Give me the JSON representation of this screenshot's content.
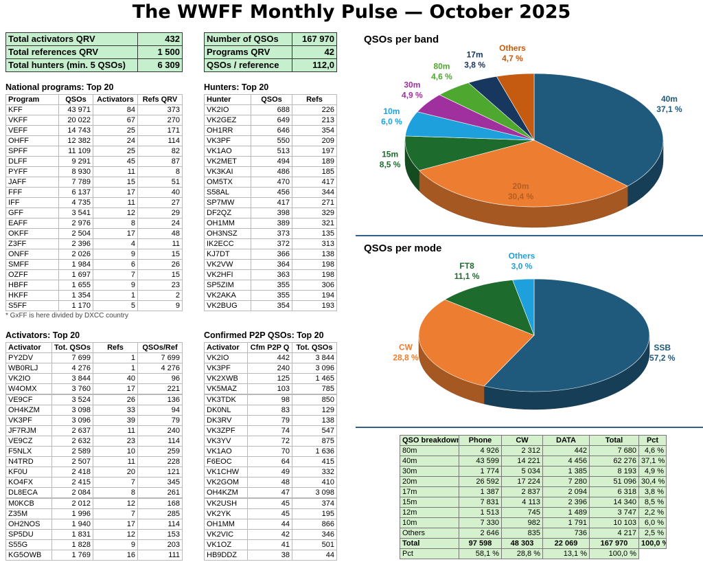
{
  "title": "The WWFF Monthly Pulse — October 2025",
  "summary_left": {
    "rows": [
      [
        "Total activators QRV",
        "432"
      ],
      [
        "Total references QRV",
        "1 500"
      ],
      [
        "Total hunters (min. 5 QSOs)",
        "6 309"
      ]
    ]
  },
  "summary_right": {
    "rows": [
      [
        "Number of QSOs",
        "167 970"
      ],
      [
        "Programs QRV",
        "42"
      ],
      [
        "QSOs / reference",
        "112,0"
      ]
    ]
  },
  "national": {
    "title": "National programs: Top 20",
    "header": [
      "Program",
      "QSOs",
      "Activators",
      "Refs QRV"
    ],
    "rows": [
      [
        "KFF",
        "43 971",
        "84",
        "373"
      ],
      [
        "VKFF",
        "20 022",
        "67",
        "270"
      ],
      [
        "VEFF",
        "14 743",
        "25",
        "171"
      ],
      [
        "OHFF",
        "12 382",
        "24",
        "114"
      ],
      [
        "SPFF",
        "11 109",
        "25",
        "82"
      ],
      [
        "DLFF",
        "9 291",
        "45",
        "87"
      ],
      [
        "PYFF",
        "8 930",
        "11",
        "8"
      ],
      [
        "JAFF",
        "7 789",
        "15",
        "51"
      ],
      [
        "FFF",
        "6 137",
        "17",
        "40"
      ],
      [
        "IFF",
        "4 735",
        "11",
        "27"
      ],
      [
        "GFF",
        "3 541",
        "12",
        "29"
      ],
      [
        "EAFF",
        "2 976",
        "8",
        "24"
      ],
      [
        "OKFF",
        "2 504",
        "17",
        "48"
      ],
      [
        "Z3FF",
        "2 396",
        "4",
        "11"
      ],
      [
        "ONFF",
        "2 026",
        "9",
        "15"
      ],
      [
        "SMFF",
        "1 984",
        "6",
        "26"
      ],
      [
        "OZFF",
        "1 697",
        "7",
        "15"
      ],
      [
        "HBFF",
        "1 655",
        "9",
        "23"
      ],
      [
        "HKFF",
        "1 354",
        "1",
        "2"
      ],
      [
        "S5FF",
        "1 170",
        "5",
        "9"
      ]
    ],
    "note": "* GxFF is here divided by DXCC country"
  },
  "hunters": {
    "title": "Hunters: Top 20",
    "header": [
      "Hunter",
      "QSOs",
      "Refs"
    ],
    "rows": [
      [
        "VK2IO",
        "688",
        "226"
      ],
      [
        "VK2GEZ",
        "649",
        "213"
      ],
      [
        "OH1RR",
        "646",
        "354"
      ],
      [
        "VK3PF",
        "550",
        "209"
      ],
      [
        "VK1AO",
        "513",
        "197"
      ],
      [
        "VK2MET",
        "494",
        "189"
      ],
      [
        "VK3KAI",
        "486",
        "185"
      ],
      [
        "OM5TX",
        "470",
        "417"
      ],
      [
        "S58AL",
        "456",
        "344"
      ],
      [
        "SP7MW",
        "417",
        "271"
      ],
      [
        "DF2QZ",
        "398",
        "329"
      ],
      [
        "OH1MM",
        "389",
        "321"
      ],
      [
        "OH3NSZ",
        "373",
        "135"
      ],
      [
        "IK2ECC",
        "372",
        "313"
      ],
      [
        "KJ7DT",
        "366",
        "138"
      ],
      [
        "VK2VW",
        "364",
        "198"
      ],
      [
        "VK2HFI",
        "363",
        "198"
      ],
      [
        "SP5ZIM",
        "355",
        "306"
      ],
      [
        "VK2AKA",
        "355",
        "194"
      ],
      [
        "VK2BUG",
        "354",
        "193"
      ]
    ]
  },
  "activators": {
    "title": "Activators: Top 20",
    "header": [
      "Activator",
      "Tot. QSOs",
      "Refs",
      "QSOs/Ref"
    ],
    "rows": [
      [
        "PY2DV",
        "7 699",
        "1",
        "7 699"
      ],
      [
        "WB0RLJ",
        "4 276",
        "1",
        "4 276"
      ],
      [
        "VK2IO",
        "3 844",
        "40",
        "96"
      ],
      [
        "W4OMX",
        "3 760",
        "17",
        "221"
      ],
      [
        "VE9CF",
        "3 524",
        "26",
        "136"
      ],
      [
        "OH4KZM",
        "3 098",
        "33",
        "94"
      ],
      [
        "VK3PF",
        "3 096",
        "39",
        "79"
      ],
      [
        "JF7RJM",
        "2 637",
        "11",
        "240"
      ],
      [
        "VE9CZ",
        "2 632",
        "23",
        "114"
      ],
      [
        "F5NLX",
        "2 589",
        "10",
        "259"
      ],
      [
        "N4TRD",
        "2 507",
        "11",
        "228"
      ],
      [
        "KF0U",
        "2 418",
        "20",
        "121"
      ],
      [
        "KO4FX",
        "2 415",
        "7",
        "345"
      ],
      [
        "DL8ECA",
        "2 084",
        "8",
        "261"
      ],
      [
        "M0KCB",
        "2 012",
        "12",
        "168"
      ],
      [
        "Z35M",
        "1 996",
        "7",
        "285"
      ],
      [
        "OH2NOS",
        "1 940",
        "17",
        "114"
      ],
      [
        "SP5DU",
        "1 831",
        "12",
        "153"
      ],
      [
        "S55G",
        "1 828",
        "9",
        "203"
      ],
      [
        "KG5OWB",
        "1 769",
        "16",
        "111"
      ]
    ]
  },
  "p2p": {
    "title": "Confirmed P2P QSOs: Top 20",
    "header": [
      "Activator",
      "Cfm P2P Q",
      "Tot. QSOs"
    ],
    "rows": [
      [
        "VK2IO",
        "442",
        "3 844"
      ],
      [
        "VK3PF",
        "240",
        "3 096"
      ],
      [
        "VK2XWB",
        "125",
        "1 465"
      ],
      [
        "VK5MAZ",
        "103",
        "785"
      ],
      [
        "VK3TDK",
        "98",
        "850"
      ],
      [
        "DK0NL",
        "83",
        "129"
      ],
      [
        "DK3RV",
        "79",
        "138"
      ],
      [
        "VK3ZPF",
        "74",
        "547"
      ],
      [
        "VK3YV",
        "72",
        "875"
      ],
      [
        "VK1AO",
        "70",
        "1 636"
      ],
      [
        "F6EOC",
        "64",
        "415"
      ],
      [
        "VK1CHW",
        "49",
        "332"
      ],
      [
        "VK2GOM",
        "48",
        "410"
      ],
      [
        "OH4KZM",
        "47",
        "3 098"
      ],
      [
        "VK2USH",
        "45",
        "374"
      ],
      [
        "VK2YK",
        "45",
        "195"
      ],
      [
        "OH1MM",
        "44",
        "866"
      ],
      [
        "VK2VIC",
        "42",
        "346"
      ],
      [
        "VK1OZ",
        "41",
        "501"
      ],
      [
        "HB9DDZ",
        "38",
        "44"
      ]
    ]
  },
  "breakdown": {
    "header": [
      "QSO breakdown",
      "Phone",
      "CW",
      "DATA",
      "Total",
      "Pct"
    ],
    "rows": [
      [
        "80m",
        "4 926",
        "2 312",
        "442",
        "7 680",
        "4,6 %"
      ],
      [
        "40m",
        "43 599",
        "14 221",
        "4 456",
        "62 276",
        "37,1 %"
      ],
      [
        "30m",
        "1 774",
        "5 034",
        "1 385",
        "8 193",
        "4,9 %"
      ],
      [
        "20m",
        "26 592",
        "17 224",
        "7 280",
        "51 096",
        "30,4 %"
      ],
      [
        "17m",
        "1 387",
        "2 837",
        "2 094",
        "6 318",
        "3,8 %"
      ],
      [
        "15m",
        "7 831",
        "4 113",
        "2 396",
        "14 340",
        "8,5 %"
      ],
      [
        "12m",
        "1 513",
        "745",
        "1 489",
        "3 747",
        "2,2 %"
      ],
      [
        "10m",
        "7 330",
        "982",
        "1 791",
        "10 103",
        "6,0 %"
      ],
      [
        "Others",
        "2 646",
        "835",
        "736",
        "4 217",
        "2,5 %"
      ],
      [
        "Total",
        "97 598",
        "48 303",
        "22 069",
        "167 970",
        "100,0 %"
      ],
      [
        "Pct",
        "58,1 %",
        "28,8 %",
        "13,1 %",
        "100,0 %"
      ]
    ]
  },
  "chart_data": [
    {
      "type": "pie",
      "title": "QSOs per band",
      "categories": [
        "40m",
        "20m",
        "15m",
        "10m",
        "30m",
        "80m",
        "17m",
        "Others"
      ],
      "values": [
        37.1,
        30.4,
        8.5,
        6.0,
        4.9,
        4.6,
        3.8,
        4.7
      ],
      "value_labels": [
        "37,1 %",
        "30,4 %",
        "8,5 %",
        "6,0 %",
        "4,9 %",
        "4,6 %",
        "3,8 %",
        "4,7 %"
      ],
      "colors": [
        "#1f5a7c",
        "#ed7d31",
        "#1e6b2e",
        "#1ea0dc",
        "#a0309e",
        "#4ea72e",
        "#17375e",
        "#c55a11"
      ]
    },
    {
      "type": "pie",
      "title": "QSOs per mode",
      "categories": [
        "SSB",
        "CW",
        "FT8",
        "Others"
      ],
      "values": [
        57.2,
        28.8,
        11.1,
        3.0
      ],
      "value_labels": [
        "57,2 %",
        "28,8 %",
        "11,1 %",
        "3,0 %"
      ],
      "colors": [
        "#1f5a7c",
        "#ed7d31",
        "#1e6b2e",
        "#1ea0dc"
      ]
    }
  ]
}
